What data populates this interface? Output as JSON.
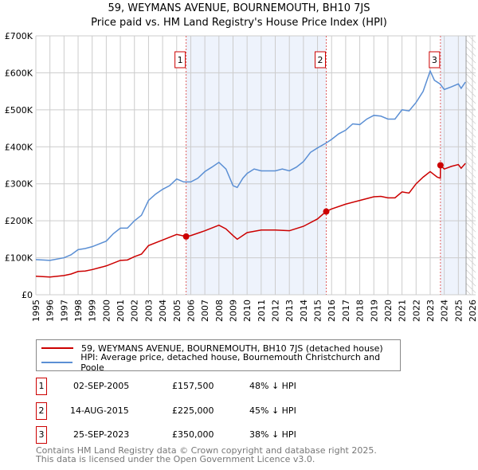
{
  "title": "59, WEYMANS AVENUE, BOURNEMOUTH, BH10 7JS",
  "subtitle": "Price paid vs. HM Land Registry's House Price Index (HPI)",
  "chart_data": {
    "type": "line",
    "title": "59, WEYMANS AVENUE, BOURNEMOUTH, BH10 7JS",
    "subtitle": "Price paid vs. HM Land Registry's House Price Index (HPI)",
    "xlim": [
      1995,
      2026
    ],
    "ylim": [
      0,
      700000
    ],
    "x_ticks": [
      "1995",
      "1996",
      "1997",
      "1998",
      "1999",
      "2000",
      "2001",
      "2002",
      "2003",
      "2004",
      "2005",
      "2006",
      "2007",
      "2008",
      "2009",
      "2010",
      "2011",
      "2012",
      "2013",
      "2014",
      "2015",
      "2016",
      "2017",
      "2018",
      "2019",
      "2020",
      "2021",
      "2022",
      "2023",
      "2024",
      "2025",
      "2026"
    ],
    "y_ticks": [
      {
        "v": 0,
        "label": "£0"
      },
      {
        "v": 100000,
        "label": "£100K"
      },
      {
        "v": 200000,
        "label": "£200K"
      },
      {
        "v": 300000,
        "label": "£300K"
      },
      {
        "v": 400000,
        "label": "£400K"
      },
      {
        "v": 500000,
        "label": "£500K"
      },
      {
        "v": 600000,
        "label": "£600K"
      },
      {
        "v": 700000,
        "label": "£700K"
      }
    ],
    "grid": true,
    "colors": {
      "price": "#cc0000",
      "hpi": "#5b8fd4",
      "shade": "#eef3fc"
    },
    "data_end": 2025.55,
    "series": [
      {
        "name": "59, WEYMANS AVENUE, BOURNEMOUTH, BH10 7JS (detached house)",
        "color": "#cc0000",
        "x": [
          1995,
          1996,
          1997,
          1997.5,
          1998,
          1998.5,
          1999,
          2000,
          2001,
          2001.5,
          2002,
          2002.5,
          2003,
          2004,
          2005,
          2005.67,
          2006,
          2007,
          2008,
          2008.5,
          2009,
          2009.3,
          2010,
          2011,
          2012,
          2013,
          2014,
          2015,
          2015.6,
          2016,
          2017,
          2018,
          2019,
          2019.5,
          2020,
          2020.5,
          2021,
          2021.5,
          2022,
          2022.5,
          2023,
          2023.5,
          2023.72,
          2023.73,
          2024,
          2024.5,
          2025,
          2025.2,
          2025.5
        ],
        "y": [
          50000,
          48000,
          52000,
          56000,
          63000,
          64000,
          68000,
          78000,
          93000,
          94000,
          103000,
          110000,
          133000,
          148000,
          163000,
          157500,
          160000,
          173000,
          188000,
          178000,
          160000,
          150000,
          168000,
          175000,
          175000,
          173000,
          185000,
          205000,
          225000,
          232000,
          245000,
          255000,
          265000,
          266000,
          262000,
          262000,
          278000,
          275000,
          300000,
          318000,
          333000,
          318000,
          315000,
          350000,
          340000,
          347000,
          352000,
          342000,
          355000
        ]
      },
      {
        "name": "HPI: Average price, detached house, Bournemouth Christchurch and Poole",
        "color": "#5b8fd4",
        "x": [
          1995,
          1996,
          1997,
          1997.5,
          1998,
          1998.5,
          1999,
          2000,
          2000.5,
          2001,
          2001.5,
          2002,
          2002.5,
          2003,
          2003.5,
          2004,
          2004.5,
          2005,
          2005.5,
          2006,
          2006.5,
          2007,
          2007.5,
          2008,
          2008.5,
          2009,
          2009.3,
          2009.7,
          2010,
          2010.5,
          2011,
          2011.5,
          2012,
          2012.5,
          2013,
          2013.5,
          2014,
          2014.5,
          2015,
          2015.6,
          2016,
          2016.5,
          2017,
          2017.5,
          2018,
          2018.5,
          2019,
          2019.5,
          2020,
          2020.5,
          2021,
          2021.5,
          2022,
          2022.5,
          2023,
          2023.3,
          2023.7,
          2024,
          2024.5,
          2025,
          2025.2,
          2025.5
        ],
        "y": [
          95000,
          93000,
          100000,
          108000,
          122000,
          125000,
          130000,
          145000,
          165000,
          180000,
          180000,
          200000,
          215000,
          255000,
          272000,
          285000,
          295000,
          313000,
          305000,
          305000,
          315000,
          333000,
          345000,
          358000,
          340000,
          295000,
          290000,
          315000,
          328000,
          340000,
          335000,
          335000,
          335000,
          340000,
          335000,
          345000,
          360000,
          385000,
          397000,
          410000,
          420000,
          435000,
          445000,
          462000,
          460000,
          475000,
          485000,
          483000,
          475000,
          475000,
          500000,
          497000,
          520000,
          550000,
          605000,
          580000,
          570000,
          555000,
          562000,
          570000,
          558000,
          575000
        ]
      }
    ],
    "sales": [
      {
        "label": "1",
        "x": 2005.67,
        "price": 157500,
        "date": "02-SEP-2005",
        "price_text": "£157,500",
        "hpi_text": "48% ↓ HPI"
      },
      {
        "label": "2",
        "x": 2015.62,
        "price": 225000,
        "date": "14-AUG-2015",
        "price_text": "£225,000",
        "hpi_text": "45% ↓ HPI"
      },
      {
        "label": "3",
        "x": 2023.73,
        "price": 350000,
        "date": "25-SEP-2023",
        "price_text": "£350,000",
        "hpi_text": "38% ↓ HPI"
      }
    ]
  },
  "footer": {
    "line1": "Contains HM Land Registry data © Crown copyright and database right 2025.",
    "line2": "This data is licensed under the Open Government Licence v3.0."
  }
}
